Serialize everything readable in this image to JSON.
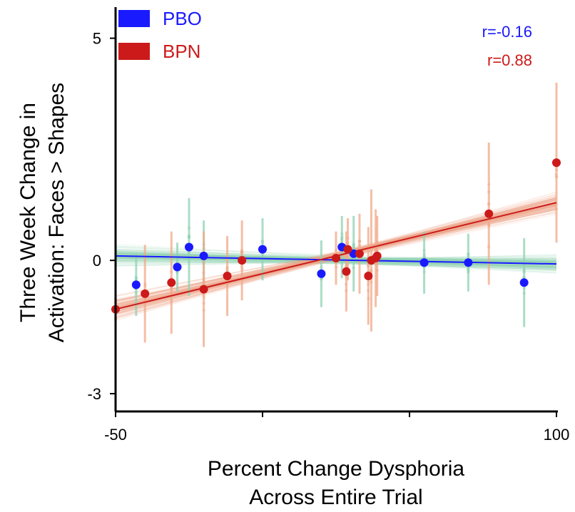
{
  "chart_data": {
    "type": "scatter",
    "xlabel_lines": [
      "Percent Change Dysphoria",
      "Across Entire Trial"
    ],
    "ylabel_lines": [
      "Three Week Change in",
      "Activation: Faces > Shapes"
    ],
    "xlim": [
      -50,
      100
    ],
    "ylim": [
      -3.4,
      5.7
    ],
    "x_ticks": [
      -50,
      100
    ],
    "x_minor_ticks": [
      0,
      50
    ],
    "y_ticks": [
      5,
      0,
      -3
    ],
    "grid": false,
    "legend_position": "top-left",
    "series": [
      {
        "name": "PBO",
        "color": "#1a1aff",
        "band_color": "#8fd1b4",
        "r_label": "r=-0.16",
        "fit": {
          "x": [
            -50,
            100
          ],
          "y": [
            0.1,
            -0.08
          ]
        },
        "points": [
          {
            "x": -43,
            "y": -0.55,
            "err": 0.7
          },
          {
            "x": -29,
            "y": -0.15,
            "err": 0.55
          },
          {
            "x": -25,
            "y": 0.3,
            "err": 1.1
          },
          {
            "x": -20,
            "y": 0.1,
            "err": 0.8
          },
          {
            "x": 0,
            "y": 0.25,
            "err": 0.7
          },
          {
            "x": 20,
            "y": -0.3,
            "err": 0.75
          },
          {
            "x": 27,
            "y": 0.3,
            "err": 0.7
          },
          {
            "x": 31,
            "y": 0.15,
            "err": 0.85
          },
          {
            "x": 55,
            "y": -0.05,
            "err": 0.7
          },
          {
            "x": 70,
            "y": -0.05,
            "err": 0.65
          },
          {
            "x": 89,
            "y": -0.5,
            "err": 1.0
          }
        ]
      },
      {
        "name": "BPN",
        "color": "#cc1a1a",
        "band_color": "#f0a888",
        "r_label": "r=0.88",
        "fit": {
          "x": [
            -50,
            100
          ],
          "y": [
            -1.1,
            1.3
          ]
        },
        "points": [
          {
            "x": -50,
            "y": -1.1,
            "err": 0.7
          },
          {
            "x": -40,
            "y": -0.75,
            "err": 1.1
          },
          {
            "x": -31,
            "y": -0.5,
            "err": 1.15
          },
          {
            "x": -20,
            "y": -0.65,
            "err": 1.3
          },
          {
            "x": -12,
            "y": -0.35,
            "err": 0.9
          },
          {
            "x": -7,
            "y": 0.0,
            "err": 0.9
          },
          {
            "x": 25,
            "y": 0.05,
            "err": 0.6
          },
          {
            "x": 28.5,
            "y": -0.25,
            "err": 0.9
          },
          {
            "x": 29,
            "y": 0.25,
            "err": 0.7
          },
          {
            "x": 33,
            "y": 0.15,
            "err": 0.9
          },
          {
            "x": 36,
            "y": -0.35,
            "err": 1.1
          },
          {
            "x": 37,
            "y": 0.0,
            "err": 1.6
          },
          {
            "x": 38.5,
            "y": 0.05,
            "err": 1.1
          },
          {
            "x": 39,
            "y": 0.1,
            "err": 0.9
          },
          {
            "x": 77,
            "y": 1.05,
            "err": 1.6
          },
          {
            "x": 100,
            "y": 2.2,
            "err": 1.8
          }
        ]
      }
    ]
  }
}
